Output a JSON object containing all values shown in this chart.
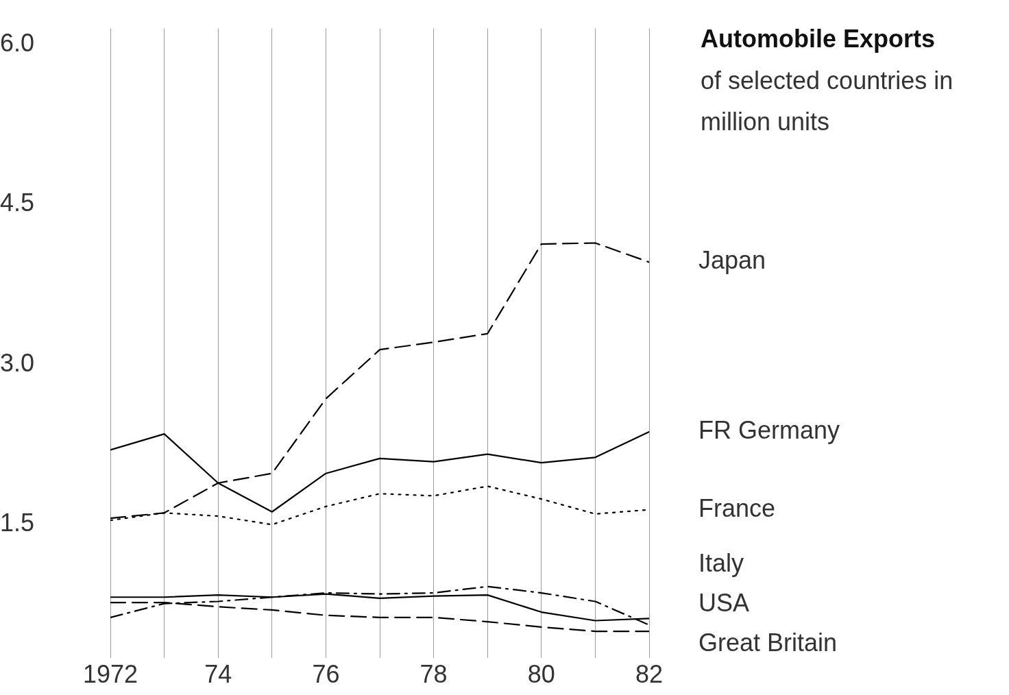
{
  "chart_data": {
    "type": "line",
    "title": "Automobile Exports",
    "subtitle": "of selected countries in million units",
    "x": [
      1972,
      1973,
      1974,
      1975,
      1976,
      1977,
      1978,
      1979,
      1980,
      1981,
      1982
    ],
    "series": [
      {
        "name": "Japan",
        "color": "#000000",
        "line_style": "dashed",
        "values": [
          1.56,
          1.61,
          1.89,
          1.98,
          2.68,
          3.14,
          3.21,
          3.29,
          4.13,
          4.14,
          3.96
        ]
      },
      {
        "name": "FR Germany",
        "color": "#000000",
        "line_style": "solid",
        "values": [
          2.2,
          2.35,
          1.89,
          1.62,
          1.98,
          2.12,
          2.09,
          2.16,
          2.08,
          2.13,
          2.37
        ]
      },
      {
        "name": "France",
        "color": "#000000",
        "line_style": "dotted",
        "values": [
          1.54,
          1.61,
          1.58,
          1.5,
          1.67,
          1.79,
          1.77,
          1.86,
          1.74,
          1.6,
          1.64
        ]
      },
      {
        "name": "Italy",
        "color": "#000000",
        "line_style": "solid",
        "values": [
          0.82,
          0.82,
          0.84,
          0.82,
          0.85,
          0.81,
          0.83,
          0.84,
          0.68,
          0.6,
          0.62
        ]
      },
      {
        "name": "USA",
        "color": "#000000",
        "line_style": "dashdot",
        "values": [
          0.63,
          0.76,
          0.78,
          0.82,
          0.86,
          0.85,
          0.86,
          0.92,
          0.86,
          0.78,
          0.56
        ]
      },
      {
        "name": "Great Britain",
        "color": "#000000",
        "line_style": "dashed",
        "values": [
          0.77,
          0.77,
          0.73,
          0.7,
          0.65,
          0.63,
          0.63,
          0.59,
          0.54,
          0.5,
          0.5
        ]
      }
    ],
    "xlim": [
      1972,
      1982
    ],
    "xticks": [
      1972,
      {
        "value": 1973,
        "label": null
      },
      {
        "value": 1974,
        "label": "74"
      },
      {
        "value": 1975,
        "label": null
      },
      {
        "value": 1976,
        "label": "76"
      },
      {
        "value": 1977,
        "label": null
      },
      {
        "value": 1978,
        "label": "78"
      },
      {
        "value": 1979,
        "label": null
      },
      {
        "value": 1980,
        "label": "80"
      },
      {
        "value": 1981,
        "label": null
      },
      {
        "value": 1982,
        "label": "82"
      }
    ],
    "ylim": [
      0.25,
      6.15
    ],
    "yticks": [
      {
        "value": 1.5,
        "label": "1.5"
      },
      {
        "value": 3,
        "label": "3.0"
      },
      {
        "value": 4.5,
        "label": "4.5"
      },
      {
        "value": 6,
        "label": "6.0"
      }
    ],
    "grid": "x",
    "legend": false,
    "marker": "none"
  }
}
